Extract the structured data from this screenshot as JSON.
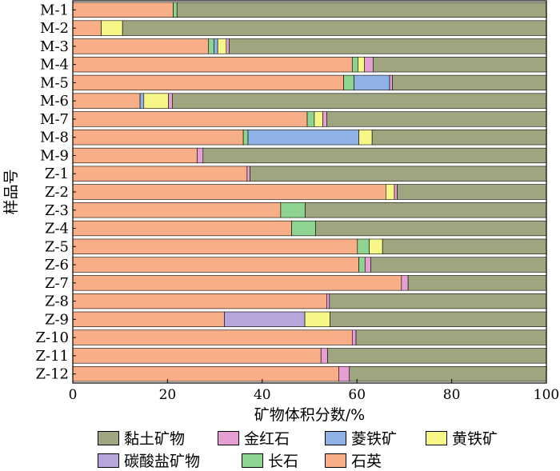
{
  "chart_data": {
    "type": "bar",
    "orientation": "horizontal",
    "stacked": true,
    "title": "",
    "xlabel": "矿物体积分数/%",
    "ylabel": "样品号",
    "xlim": [
      0,
      100
    ],
    "xticks": [
      "0",
      "20",
      "40",
      "60",
      "80",
      "100"
    ],
    "grid": false,
    "legend_position": "bottom",
    "categories": [
      "M-1",
      "M-2",
      "M-3",
      "M-4",
      "M-5",
      "M-6",
      "M-7",
      "M-8",
      "M-9",
      "Z-1",
      "Z-2",
      "Z-3",
      "Z-4",
      "Z-5",
      "Z-6",
      "Z-7",
      "Z-8",
      "Z-9",
      "Z-10",
      "Z-11",
      "Z-12"
    ],
    "series": [
      {
        "name": "石英",
        "color": "#F8AE87",
        "values": [
          21.2,
          6.0,
          28.6,
          59.0,
          57.2,
          14.2,
          49.5,
          36.0,
          26.3,
          36.8,
          66.1,
          43.9,
          46.2,
          60.1,
          60.4,
          69.4,
          53.6,
          32.0,
          59.0,
          52.4,
          56.2
        ]
      },
      {
        "name": "长石",
        "color": "#8ED38F",
        "values": [
          0.8,
          0,
          1.2,
          1.2,
          2.2,
          0,
          1.5,
          1.0,
          0,
          0,
          0,
          5.2,
          5.1,
          2.5,
          1.3,
          0,
          0,
          0,
          0,
          0,
          0
        ]
      },
      {
        "name": "碳酸盐矿物",
        "color": "#B6A6DB",
        "values": [
          0,
          0,
          0,
          0,
          0,
          0,
          0,
          0,
          0,
          0,
          0,
          0,
          0,
          0,
          0,
          0,
          0,
          17.0,
          0,
          0,
          0
        ]
      },
      {
        "name": "菱铁矿",
        "color": "#8FB3E6",
        "values": [
          0,
          0,
          0.8,
          0,
          7.5,
          0.8,
          0,
          23.4,
          0,
          0,
          0,
          0,
          0,
          0,
          0,
          0,
          0,
          0,
          0,
          0,
          0
        ]
      },
      {
        "name": "黄铁矿",
        "color": "#F7F787",
        "values": [
          0,
          4.5,
          1.8,
          1.4,
          0,
          5.2,
          1.8,
          2.8,
          0,
          0,
          1.8,
          0,
          0,
          2.8,
          0,
          0,
          0,
          5.3,
          0,
          0,
          0
        ]
      },
      {
        "name": "金红石",
        "color": "#E59FD2",
        "values": [
          0,
          0,
          0.6,
          1.8,
          0.6,
          0.8,
          0.8,
          0,
          1.2,
          0.6,
          0.6,
          0,
          0,
          0,
          1.2,
          1.4,
          0.6,
          0,
          0.8,
          1.4,
          2.2
        ]
      },
      {
        "name": "黏土矿物",
        "color": "#9FA67F",
        "values": [
          78.0,
          89.5,
          67.0,
          36.6,
          32.5,
          79.0,
          46.4,
          36.8,
          72.5,
          62.6,
          31.5,
          50.9,
          48.7,
          34.6,
          37.1,
          29.2,
          45.8,
          45.7,
          40.2,
          46.2,
          41.6
        ]
      }
    ]
  },
  "legend": {
    "items": [
      {
        "label": "黏土矿物",
        "color": "#9FA67F"
      },
      {
        "label": "金红石",
        "color": "#E59FD2"
      },
      {
        "label": "菱铁矿",
        "color": "#8FB3E6"
      },
      {
        "label": "黄铁矿",
        "color": "#F7F787"
      },
      {
        "label": "碳酸盐矿物",
        "color": "#B6A6DB"
      },
      {
        "label": "长石",
        "color": "#8ED38F"
      },
      {
        "label": "石英",
        "color": "#F8AE87"
      }
    ]
  }
}
